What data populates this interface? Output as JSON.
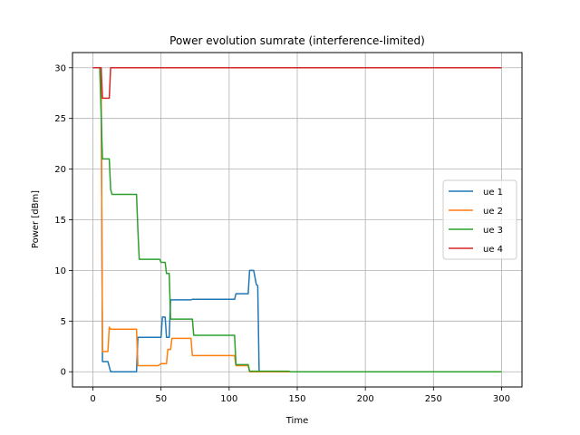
{
  "chart_data": {
    "type": "line",
    "title": "Power evolution sumrate (interference-limited)",
    "xlabel": "Time",
    "ylabel": "Power [dBm]",
    "xlim": [
      -15,
      315
    ],
    "ylim": [
      -1.5,
      31.5
    ],
    "xticks": [
      0,
      50,
      100,
      150,
      200,
      250,
      300
    ],
    "yticks": [
      0,
      5,
      10,
      15,
      20,
      25,
      30
    ],
    "grid": true,
    "legend_position": "center-right",
    "series": [
      {
        "name": "ue 1",
        "color": "#1f77b4",
        "points": [
          [
            0,
            30
          ],
          [
            6,
            30
          ],
          [
            7,
            1
          ],
          [
            11,
            1
          ],
          [
            13,
            0
          ],
          [
            32,
            0
          ],
          [
            33,
            3.4
          ],
          [
            50,
            3.4
          ],
          [
            51,
            5.4
          ],
          [
            53,
            5.4
          ],
          [
            54,
            3.4
          ],
          [
            56,
            3.4
          ],
          [
            57,
            7.1
          ],
          [
            72,
            7.1
          ],
          [
            73,
            7.15
          ],
          [
            104,
            7.15
          ],
          [
            105,
            7.7
          ],
          [
            114,
            7.7
          ],
          [
            115,
            10
          ],
          [
            118,
            10
          ],
          [
            120,
            8.6
          ],
          [
            121,
            8.5
          ],
          [
            122,
            0
          ],
          [
            300,
            0
          ]
        ]
      },
      {
        "name": "ue 2",
        "color": "#ff7f0e",
        "points": [
          [
            0,
            30
          ],
          [
            6,
            30
          ],
          [
            7,
            2
          ],
          [
            11,
            2
          ],
          [
            12,
            4.4
          ],
          [
            13,
            4.2
          ],
          [
            32,
            4.2
          ],
          [
            33,
            0.6
          ],
          [
            48,
            0.6
          ],
          [
            50,
            0.8
          ],
          [
            54,
            0.8
          ],
          [
            55,
            2.2
          ],
          [
            57,
            2.2
          ],
          [
            58,
            3.3
          ],
          [
            72,
            3.3
          ],
          [
            73,
            1.6
          ],
          [
            104,
            1.6
          ],
          [
            105,
            0.6
          ],
          [
            114,
            0.6
          ],
          [
            115,
            0
          ],
          [
            300,
            0
          ]
        ]
      },
      {
        "name": "ue 3",
        "color": "#2ca02c",
        "points": [
          [
            0,
            30
          ],
          [
            5,
            30
          ],
          [
            7,
            21
          ],
          [
            12,
            21
          ],
          [
            13,
            18
          ],
          [
            14,
            17.5
          ],
          [
            32,
            17.5
          ],
          [
            33,
            14
          ],
          [
            34,
            11.1
          ],
          [
            49,
            11.1
          ],
          [
            50,
            10.8
          ],
          [
            53,
            10.8
          ],
          [
            54,
            9.7
          ],
          [
            56,
            9.7
          ],
          [
            57,
            5.2
          ],
          [
            73,
            5.2
          ],
          [
            74,
            3.6
          ],
          [
            104,
            3.6
          ],
          [
            105,
            0.7
          ],
          [
            114,
            0.7
          ],
          [
            115,
            0.05
          ],
          [
            144,
            0.05
          ],
          [
            145,
            0
          ],
          [
            300,
            0
          ]
        ]
      },
      {
        "name": "ue 4",
        "color": "#d62728",
        "points": [
          [
            0,
            30
          ],
          [
            6,
            30
          ],
          [
            7,
            27
          ],
          [
            12,
            27
          ],
          [
            13,
            30
          ],
          [
            300,
            30
          ]
        ]
      }
    ]
  }
}
